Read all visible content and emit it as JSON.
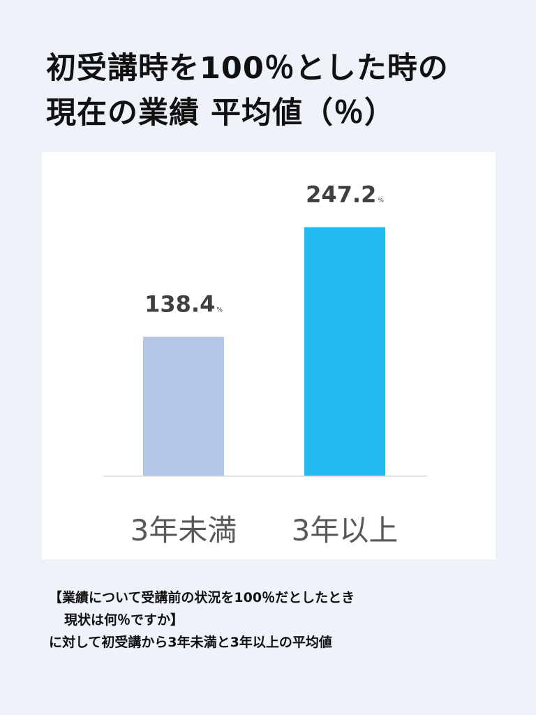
{
  "header": {
    "title_line1": "初受講時を100％とした時の",
    "title_line2": "現在の業績 平均値（％）"
  },
  "chart_data": {
    "type": "bar",
    "categories": [
      "3年未満",
      "3年以上"
    ],
    "values": [
      138.4,
      247.2
    ],
    "value_labels": [
      "138.4",
      "247.2"
    ],
    "value_unit": "%",
    "colors": [
      "#b4c7e7",
      "#22bbf0"
    ],
    "ylim": [
      0,
      280
    ]
  },
  "footnote": {
    "line1": "【業績について受講前の状況を100％だとしたとき",
    "line2": "現状は何％ですか】",
    "line3": "に対して初受講から3年未満と3年以上の平均値"
  }
}
